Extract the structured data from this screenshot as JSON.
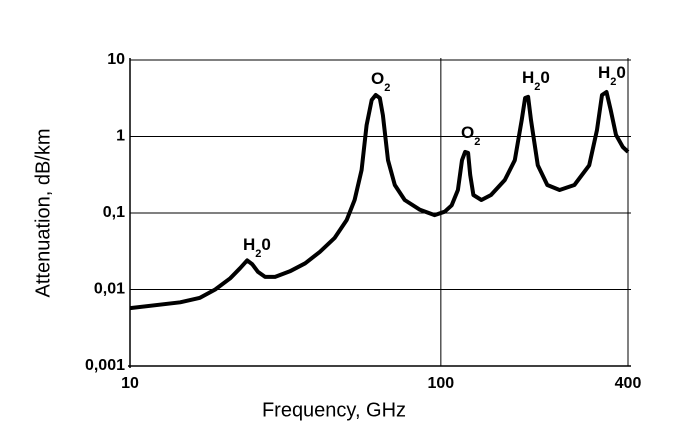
{
  "chart_data": {
    "type": "line",
    "x_label": "Frequency, GHz",
    "y_label": "Attenuation, dB/km",
    "xscale": "log",
    "yscale": "log",
    "grid": true,
    "xlim": [
      10,
      400
    ],
    "xticks": [
      10,
      100,
      400
    ],
    "ylim": [
      0.001,
      10
    ],
    "yticks": [
      {
        "value": 0.001,
        "label": "0,001"
      },
      {
        "value": 0.01,
        "label": "0,01"
      },
      {
        "value": 0.1,
        "label": "0,1"
      },
      1,
      10
    ],
    "series": [
      {
        "color": "#000000",
        "x": [
          10,
          14.5,
          16.8,
          18.8,
          21.0,
          22.6,
          23.8,
          24.7,
          25.8,
          27.2,
          29.3,
          32.7,
          36.6,
          40.8,
          45.5,
          49.8,
          52.8,
          55.6,
          57.7,
          59.9,
          61.7,
          63.6,
          65.1,
          67.6,
          71.1,
          76.5,
          85.7,
          95.5,
          102.9,
          108.4,
          113.5,
          117,
          119.7,
          122.4,
          124.3,
          127.3,
          135,
          145,
          160.6,
          172.9,
          182,
          186.6,
          190.8,
          195,
          205,
          220,
          241,
          269,
          300,
          318,
          330,
          341,
          352,
          366,
          385,
          400
        ],
        "values": [
          0.0057,
          0.0068,
          0.0078,
          0.01,
          0.014,
          0.019,
          0.024,
          0.0215,
          0.017,
          0.0146,
          0.0146,
          0.0173,
          0.022,
          0.031,
          0.047,
          0.081,
          0.148,
          0.365,
          1.41,
          3.0,
          3.49,
          3.19,
          1.9,
          0.49,
          0.232,
          0.148,
          0.11,
          0.094,
          0.104,
          0.126,
          0.2,
          0.49,
          0.63,
          0.61,
          0.315,
          0.172,
          0.148,
          0.172,
          0.27,
          0.49,
          1.64,
          3.19,
          3.3,
          1.64,
          0.42,
          0.232,
          0.2,
          0.232,
          0.42,
          1.22,
          3.49,
          3.82,
          2.22,
          1.05,
          0.73,
          0.63
        ]
      }
    ],
    "annotations": [
      {
        "text": "H",
        "sub": "2",
        "tail": "0"
      },
      {
        "text": "O",
        "sub": "2"
      },
      {
        "text": "O",
        "sub": "2"
      },
      {
        "text": "H",
        "sub": "2",
        "tail": "0"
      },
      {
        "text": "H",
        "sub": "2",
        "tail": "0"
      }
    ]
  }
}
